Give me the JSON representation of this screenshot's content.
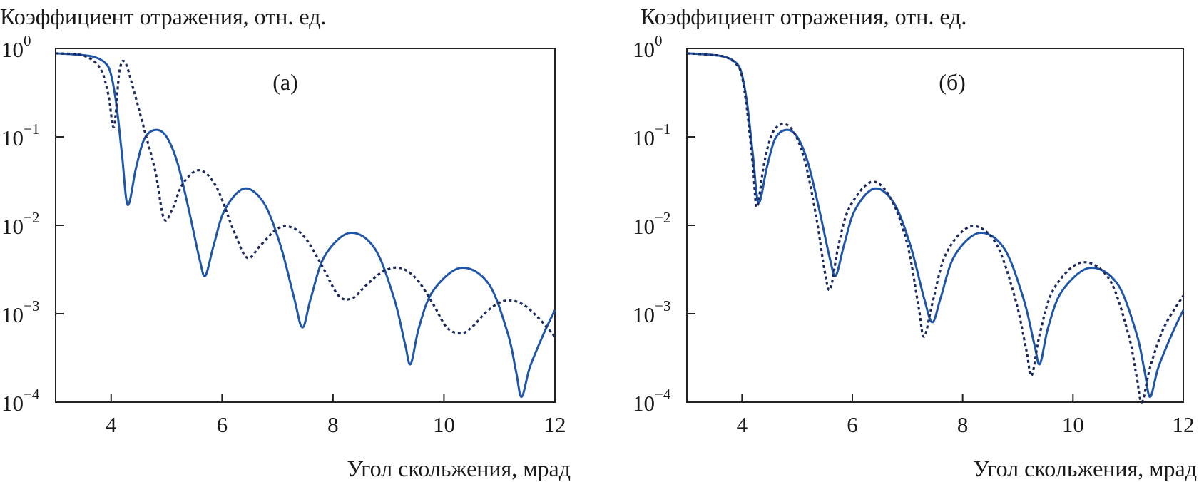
{
  "colors": {
    "solid": "#1f56a8",
    "dotted": "#1c2a5c",
    "axis": "#222222"
  },
  "chart_data": [
    {
      "type": "line",
      "panel_label": "(а)",
      "ylabel": "Коэффициент отражения, отн. ед.",
      "xlabel": "Угол скольжения, мрад",
      "xlim": [
        3,
        12
      ],
      "ylim": [
        0.0001,
        1
      ],
      "yscale": "log",
      "x_ticks": [
        "4",
        "6",
        "8",
        "10",
        "12"
      ],
      "y_ticks": [
        {
          "base": "10",
          "exp": "0"
        },
        {
          "base": "10",
          "exp": "−1"
        },
        {
          "base": "10",
          "exp": "−2"
        },
        {
          "base": "10",
          "exp": "−3"
        },
        {
          "base": "10",
          "exp": "−4"
        }
      ],
      "series": [
        {
          "style": "solid",
          "x": [
            3.0,
            3.4,
            3.7,
            3.9,
            4.0,
            4.1,
            4.2,
            4.3,
            4.45,
            4.6,
            4.8,
            5.0,
            5.2,
            5.4,
            5.6,
            5.7,
            5.85,
            6.05,
            6.4,
            6.75,
            7.05,
            7.3,
            7.45,
            7.6,
            7.85,
            8.3,
            8.75,
            9.1,
            9.3,
            9.4,
            9.55,
            9.8,
            10.3,
            10.8,
            11.15,
            11.3,
            11.4,
            11.55,
            11.8,
            12.0
          ],
          "y": [
            0.88,
            0.85,
            0.8,
            0.68,
            0.5,
            0.22,
            0.06,
            0.017,
            0.045,
            0.095,
            0.12,
            0.1,
            0.05,
            0.015,
            0.004,
            0.0027,
            0.006,
            0.015,
            0.026,
            0.018,
            0.006,
            0.0015,
            0.0007,
            0.0015,
            0.0045,
            0.0082,
            0.0055,
            0.0015,
            0.00045,
            0.00027,
            0.0007,
            0.0018,
            0.0033,
            0.0022,
            0.0006,
            0.00022,
            0.000115,
            0.00025,
            0.0006,
            0.0011
          ]
        },
        {
          "style": "dotted",
          "x": [
            3.0,
            3.5,
            3.8,
            3.95,
            4.05,
            4.15,
            4.25,
            4.4,
            4.6,
            4.8,
            4.95,
            5.1,
            5.3,
            5.6,
            5.9,
            6.2,
            6.45,
            6.7,
            7.0,
            7.25,
            7.5,
            7.8,
            8.1,
            8.35,
            8.6,
            8.9,
            9.2,
            9.5,
            9.8,
            10.05,
            10.3,
            10.5,
            10.8,
            11.1,
            11.4,
            11.7,
            12.0
          ],
          "y": [
            0.88,
            0.83,
            0.6,
            0.3,
            0.13,
            0.55,
            0.7,
            0.35,
            0.12,
            0.04,
            0.012,
            0.015,
            0.03,
            0.042,
            0.027,
            0.009,
            0.0043,
            0.006,
            0.0092,
            0.0095,
            0.0072,
            0.0035,
            0.0016,
            0.0015,
            0.0021,
            0.003,
            0.0033,
            0.0025,
            0.0013,
            0.0007,
            0.0006,
            0.0007,
            0.0011,
            0.0014,
            0.0013,
            0.0009,
            0.00055
          ]
        }
      ]
    },
    {
      "type": "line",
      "panel_label": "(б)",
      "ylabel": "Коэффициент отражения, отн. ед.",
      "xlabel": "Угол скольжения, мрад",
      "xlim": [
        3,
        12
      ],
      "ylim": [
        0.0001,
        1
      ],
      "yscale": "log",
      "x_ticks": [
        "4",
        "6",
        "8",
        "10",
        "12"
      ],
      "y_ticks": [
        {
          "base": "10",
          "exp": "0"
        },
        {
          "base": "10",
          "exp": "−1"
        },
        {
          "base": "10",
          "exp": "−2"
        },
        {
          "base": "10",
          "exp": "−3"
        },
        {
          "base": "10",
          "exp": "−4"
        }
      ],
      "series": [
        {
          "style": "solid",
          "x": [
            3.0,
            3.4,
            3.7,
            3.9,
            4.0,
            4.1,
            4.2,
            4.3,
            4.45,
            4.6,
            4.8,
            5.0,
            5.2,
            5.4,
            5.6,
            5.7,
            5.85,
            6.05,
            6.4,
            6.75,
            7.05,
            7.3,
            7.45,
            7.6,
            7.85,
            8.3,
            8.75,
            9.1,
            9.3,
            9.4,
            9.55,
            9.8,
            10.3,
            10.8,
            11.15,
            11.3,
            11.4,
            11.55,
            11.8,
            12.0
          ],
          "y": [
            0.88,
            0.85,
            0.8,
            0.68,
            0.5,
            0.22,
            0.06,
            0.018,
            0.045,
            0.095,
            0.12,
            0.1,
            0.05,
            0.015,
            0.004,
            0.0027,
            0.006,
            0.015,
            0.026,
            0.018,
            0.006,
            0.0015,
            0.0008,
            0.0015,
            0.0045,
            0.0082,
            0.0055,
            0.0015,
            0.00045,
            0.00027,
            0.0007,
            0.0018,
            0.0033,
            0.0022,
            0.0006,
            0.00022,
            0.000115,
            0.00025,
            0.0006,
            0.0011
          ]
        },
        {
          "style": "dotted",
          "x": [
            3.0,
            3.4,
            3.7,
            3.9,
            4.0,
            4.1,
            4.2,
            4.27,
            4.4,
            4.55,
            4.75,
            4.95,
            5.15,
            5.35,
            5.5,
            5.6,
            5.75,
            5.95,
            6.35,
            6.7,
            7.0,
            7.2,
            7.3,
            7.45,
            7.7,
            8.15,
            8.6,
            8.95,
            9.15,
            9.25,
            9.4,
            9.65,
            10.15,
            10.65,
            11.0,
            11.15,
            11.25,
            11.4,
            11.65,
            12.0
          ],
          "y": [
            0.88,
            0.85,
            0.8,
            0.66,
            0.48,
            0.18,
            0.045,
            0.016,
            0.05,
            0.11,
            0.14,
            0.11,
            0.05,
            0.012,
            0.003,
            0.0019,
            0.006,
            0.016,
            0.031,
            0.02,
            0.006,
            0.0012,
            0.00055,
            0.0013,
            0.0048,
            0.0097,
            0.0063,
            0.0015,
            0.0004,
            0.0002,
            0.0006,
            0.0019,
            0.0038,
            0.0025,
            0.0006,
            0.0002,
            0.0001,
            0.00025,
            0.0007,
            0.0016
          ]
        }
      ]
    }
  ]
}
